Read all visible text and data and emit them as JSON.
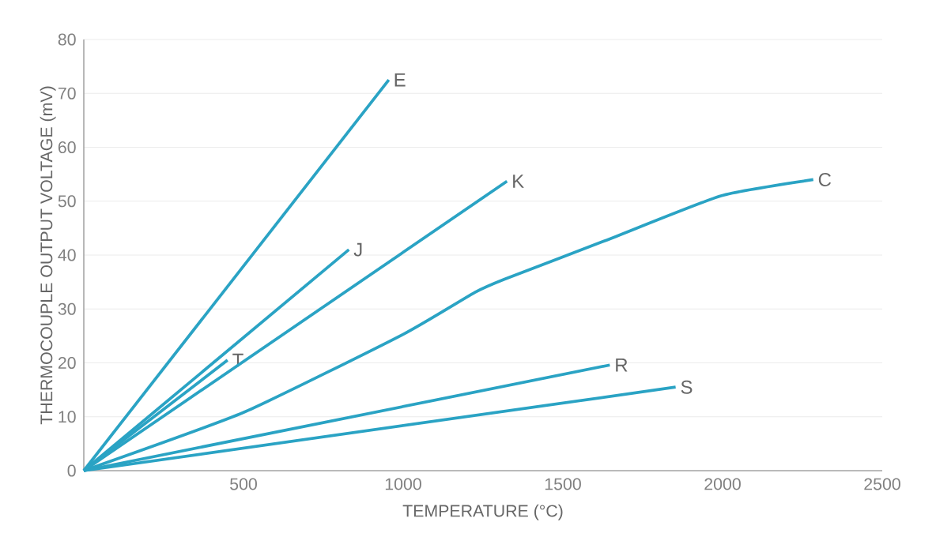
{
  "chart_data": {
    "type": "line",
    "xlabel": "TEMPERATURE (°C)",
    "ylabel": "THERMOCOUPLE OUTPUT VOLTAGE (mV)",
    "xlim": [
      0,
      2500
    ],
    "xticks": [
      500,
      1000,
      1500,
      2000,
      2500
    ],
    "ylim": [
      0,
      80
    ],
    "yticks": [
      0,
      10,
      20,
      30,
      40,
      50,
      60,
      70,
      80
    ],
    "grid": "y",
    "legend": false,
    "marker": "none",
    "line_style": "solid",
    "series": [
      {
        "name": "E",
        "color": "#2aa3c4",
        "x": [
          0,
          955
        ],
        "values": [
          0,
          72.5
        ]
      },
      {
        "name": "J",
        "color": "#2aa3c4",
        "x": [
          0,
          830
        ],
        "values": [
          0,
          41
        ]
      },
      {
        "name": "T",
        "color": "#2aa3c4",
        "x": [
          0,
          450
        ],
        "values": [
          0,
          20.5
        ]
      },
      {
        "name": "K",
        "color": "#2aa3c4",
        "x": [
          0,
          1325
        ],
        "values": [
          0,
          53.7
        ]
      },
      {
        "name": "C",
        "color": "#2aa3c4",
        "x": [
          0,
          500,
          1000,
          1225,
          1316,
          1638,
          1995,
          2284
        ],
        "values": [
          0,
          10.8,
          25.3,
          33.1,
          35.5,
          42.8,
          51,
          54
        ]
      },
      {
        "name": "R",
        "color": "#2aa3c4",
        "x": [
          0,
          1647
        ],
        "values": [
          0,
          19.6
        ]
      },
      {
        "name": "S",
        "color": "#2aa3c4",
        "x": [
          0,
          1853
        ],
        "values": [
          0,
          15.5
        ]
      }
    ]
  }
}
